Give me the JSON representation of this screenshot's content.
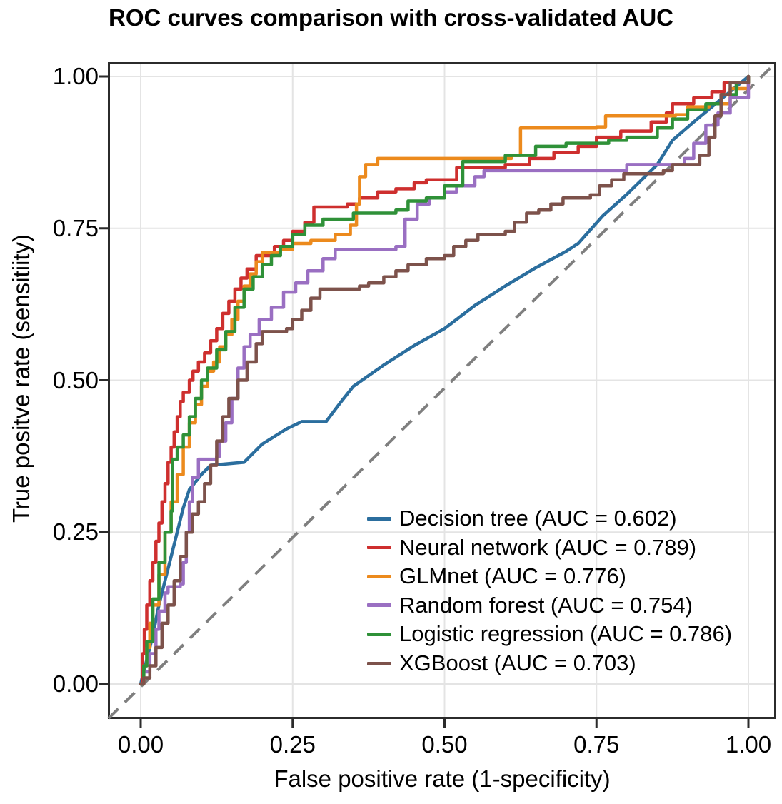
{
  "title": "ROC curves comparison with cross-validated AUC",
  "axes": {
    "x_label": "False positive rate (1-specificity)",
    "y_label": "True positve rate (sensitiity)",
    "x_ticks": [
      "0.00",
      "0.25",
      "0.50",
      "0.75",
      "1.00"
    ],
    "y_ticks": [
      "0.00",
      "0.25",
      "0.50",
      "0.75",
      "1.00"
    ],
    "x_tick_values": [
      0,
      0.25,
      0.5,
      0.75,
      1
    ],
    "y_tick_values": [
      0,
      0.25,
      0.5,
      0.75,
      1
    ]
  },
  "style_colors": {
    "grid": "#e4e4e4",
    "panel_border": "#2b2b2b",
    "diagonal": "#7f7f7f",
    "text": "#000000"
  },
  "chart_data": {
    "type": "line",
    "title": "ROC curves comparison with cross-validated AUC",
    "xlabel": "False positive rate (1-specificity)",
    "ylabel": "True positve rate (sensitiity)",
    "xlim": [
      0,
      1
    ],
    "ylim": [
      0,
      1
    ],
    "grid": true,
    "legend_position": "inside lower-right",
    "reference_line": {
      "type": "diagonal chance line",
      "style": "dashed",
      "color": "#7f7f7f",
      "from": [
        0,
        0
      ],
      "to": [
        1,
        1
      ]
    },
    "series": [
      {
        "name": "Decision tree",
        "auc": 0.602,
        "label": "Decision tree (AUC = 0.602)",
        "color": "#2b6e9e",
        "interp": "linear",
        "points": [
          [
            0,
            0
          ],
          [
            0.01,
            0.04
          ],
          [
            0.02,
            0.08
          ],
          [
            0.03,
            0.13
          ],
          [
            0.04,
            0.17
          ],
          [
            0.05,
            0.21
          ],
          [
            0.06,
            0.25
          ],
          [
            0.07,
            0.29
          ],
          [
            0.08,
            0.32
          ],
          [
            0.1,
            0.345
          ],
          [
            0.115,
            0.36
          ],
          [
            0.17,
            0.365
          ],
          [
            0.2,
            0.395
          ],
          [
            0.24,
            0.42
          ],
          [
            0.265,
            0.432
          ],
          [
            0.305,
            0.432
          ],
          [
            0.33,
            0.465
          ],
          [
            0.35,
            0.49
          ],
          [
            0.4,
            0.525
          ],
          [
            0.45,
            0.557
          ],
          [
            0.5,
            0.585
          ],
          [
            0.55,
            0.623
          ],
          [
            0.6,
            0.655
          ],
          [
            0.65,
            0.685
          ],
          [
            0.7,
            0.712
          ],
          [
            0.72,
            0.725
          ],
          [
            0.76,
            0.77
          ],
          [
            0.8,
            0.806
          ],
          [
            0.85,
            0.855
          ],
          [
            0.875,
            0.895
          ],
          [
            0.91,
            0.925
          ],
          [
            1,
            1
          ]
        ]
      },
      {
        "name": "Neural network",
        "auc": 0.789,
        "label": "Neural network (AUC = 0.789)",
        "color": "#ce2f2e",
        "interp": "step",
        "points": [
          [
            0,
            0
          ],
          [
            0.003,
            0.05
          ],
          [
            0.006,
            0.09
          ],
          [
            0.01,
            0.13
          ],
          [
            0.015,
            0.17
          ],
          [
            0.02,
            0.2
          ],
          [
            0.025,
            0.235
          ],
          [
            0.03,
            0.265
          ],
          [
            0.035,
            0.3
          ],
          [
            0.04,
            0.33
          ],
          [
            0.045,
            0.365
          ],
          [
            0.05,
            0.39
          ],
          [
            0.055,
            0.415
          ],
          [
            0.06,
            0.44
          ],
          [
            0.065,
            0.465
          ],
          [
            0.07,
            0.48
          ],
          [
            0.08,
            0.5
          ],
          [
            0.086,
            0.515
          ],
          [
            0.095,
            0.53
          ],
          [
            0.105,
            0.545
          ],
          [
            0.115,
            0.565
          ],
          [
            0.125,
            0.585
          ],
          [
            0.135,
            0.61
          ],
          [
            0.145,
            0.63
          ],
          [
            0.155,
            0.65
          ],
          [
            0.165,
            0.668
          ],
          [
            0.175,
            0.683
          ],
          [
            0.19,
            0.705
          ],
          [
            0.22,
            0.72
          ],
          [
            0.235,
            0.73
          ],
          [
            0.25,
            0.745
          ],
          [
            0.27,
            0.76
          ],
          [
            0.285,
            0.785
          ],
          [
            0.34,
            0.79
          ],
          [
            0.36,
            0.8
          ],
          [
            0.39,
            0.81
          ],
          [
            0.42,
            0.815
          ],
          [
            0.45,
            0.825
          ],
          [
            0.47,
            0.83
          ],
          [
            0.52,
            0.85
          ],
          [
            0.6,
            0.855
          ],
          [
            0.64,
            0.865
          ],
          [
            0.68,
            0.875
          ],
          [
            0.72,
            0.885
          ],
          [
            0.75,
            0.9
          ],
          [
            0.79,
            0.91
          ],
          [
            0.84,
            0.925
          ],
          [
            0.865,
            0.94
          ],
          [
            0.875,
            0.955
          ],
          [
            0.91,
            0.965
          ],
          [
            0.94,
            0.975
          ],
          [
            0.96,
            0.99
          ],
          [
            1,
            1
          ]
        ]
      },
      {
        "name": "GLMnet",
        "auc": 0.776,
        "label": "GLMnet (AUC = 0.776)",
        "color": "#ec8a1d",
        "interp": "step",
        "points": [
          [
            0,
            0
          ],
          [
            0.005,
            0.03
          ],
          [
            0.01,
            0.06
          ],
          [
            0.015,
            0.1
          ],
          [
            0.02,
            0.13
          ],
          [
            0.03,
            0.18
          ],
          [
            0.04,
            0.25
          ],
          [
            0.05,
            0.3
          ],
          [
            0.06,
            0.345
          ],
          [
            0.07,
            0.39
          ],
          [
            0.08,
            0.43
          ],
          [
            0.09,
            0.46
          ],
          [
            0.1,
            0.49
          ],
          [
            0.11,
            0.515
          ],
          [
            0.12,
            0.53
          ],
          [
            0.13,
            0.555
          ],
          [
            0.14,
            0.575
          ],
          [
            0.15,
            0.6
          ],
          [
            0.16,
            0.63
          ],
          [
            0.17,
            0.655
          ],
          [
            0.18,
            0.675
          ],
          [
            0.19,
            0.695
          ],
          [
            0.2,
            0.71
          ],
          [
            0.23,
            0.715
          ],
          [
            0.25,
            0.725
          ],
          [
            0.28,
            0.73
          ],
          [
            0.32,
            0.74
          ],
          [
            0.345,
            0.755
          ],
          [
            0.355,
            0.79
          ],
          [
            0.36,
            0.835
          ],
          [
            0.37,
            0.855
          ],
          [
            0.39,
            0.865
          ],
          [
            0.61,
            0.87
          ],
          [
            0.625,
            0.915
          ],
          [
            0.75,
            0.917
          ],
          [
            0.765,
            0.935
          ],
          [
            0.88,
            0.937
          ],
          [
            0.9,
            0.95
          ],
          [
            0.935,
            0.955
          ],
          [
            0.97,
            0.98
          ],
          [
            1,
            1
          ]
        ]
      },
      {
        "name": "Random forest",
        "auc": 0.754,
        "label": "Random forest (AUC = 0.754)",
        "color": "#9a6fc2",
        "interp": "step",
        "points": [
          [
            0,
            0
          ],
          [
            0.005,
            0.02
          ],
          [
            0.015,
            0.05
          ],
          [
            0.025,
            0.09
          ],
          [
            0.03,
            0.12
          ],
          [
            0.04,
            0.15
          ],
          [
            0.045,
            0.16
          ],
          [
            0.065,
            0.165
          ],
          [
            0.07,
            0.2
          ],
          [
            0.075,
            0.25
          ],
          [
            0.08,
            0.3
          ],
          [
            0.085,
            0.34
          ],
          [
            0.095,
            0.37
          ],
          [
            0.125,
            0.375
          ],
          [
            0.13,
            0.4
          ],
          [
            0.14,
            0.43
          ],
          [
            0.15,
            0.47
          ],
          [
            0.16,
            0.52
          ],
          [
            0.17,
            0.555
          ],
          [
            0.18,
            0.575
          ],
          [
            0.195,
            0.6
          ],
          [
            0.215,
            0.62
          ],
          [
            0.235,
            0.645
          ],
          [
            0.255,
            0.66
          ],
          [
            0.275,
            0.68
          ],
          [
            0.3,
            0.7
          ],
          [
            0.32,
            0.715
          ],
          [
            0.42,
            0.72
          ],
          [
            0.435,
            0.765
          ],
          [
            0.455,
            0.79
          ],
          [
            0.475,
            0.8
          ],
          [
            0.5,
            0.81
          ],
          [
            0.52,
            0.82
          ],
          [
            0.55,
            0.835
          ],
          [
            0.565,
            0.845
          ],
          [
            0.78,
            0.845
          ],
          [
            0.8,
            0.855
          ],
          [
            0.88,
            0.855
          ],
          [
            0.895,
            0.865
          ],
          [
            0.91,
            0.89
          ],
          [
            0.93,
            0.92
          ],
          [
            0.95,
            0.94
          ],
          [
            0.97,
            0.965
          ],
          [
            1,
            1
          ]
        ]
      },
      {
        "name": "Logistic regression",
        "auc": 0.786,
        "label": "Logistic regression (AUC = 0.786)",
        "color": "#2f9138",
        "interp": "step",
        "points": [
          [
            0,
            0
          ],
          [
            0.005,
            0.03
          ],
          [
            0.01,
            0.07
          ],
          [
            0.02,
            0.14
          ],
          [
            0.03,
            0.2
          ],
          [
            0.04,
            0.25
          ],
          [
            0.05,
            0.285
          ],
          [
            0.052,
            0.37
          ],
          [
            0.06,
            0.39
          ],
          [
            0.07,
            0.41
          ],
          [
            0.08,
            0.44
          ],
          [
            0.09,
            0.47
          ],
          [
            0.1,
            0.5
          ],
          [
            0.11,
            0.52
          ],
          [
            0.125,
            0.55
          ],
          [
            0.14,
            0.58
          ],
          [
            0.155,
            0.62
          ],
          [
            0.17,
            0.65
          ],
          [
            0.185,
            0.67
          ],
          [
            0.2,
            0.69
          ],
          [
            0.215,
            0.705
          ],
          [
            0.23,
            0.72
          ],
          [
            0.25,
            0.74
          ],
          [
            0.27,
            0.755
          ],
          [
            0.3,
            0.765
          ],
          [
            0.35,
            0.775
          ],
          [
            0.42,
            0.78
          ],
          [
            0.44,
            0.795
          ],
          [
            0.47,
            0.8
          ],
          [
            0.5,
            0.82
          ],
          [
            0.53,
            0.86
          ],
          [
            0.6,
            0.87
          ],
          [
            0.65,
            0.885
          ],
          [
            0.7,
            0.89
          ],
          [
            0.77,
            0.895
          ],
          [
            0.8,
            0.9
          ],
          [
            0.85,
            0.915
          ],
          [
            0.875,
            0.93
          ],
          [
            0.9,
            0.945
          ],
          [
            0.93,
            0.955
          ],
          [
            0.955,
            0.97
          ],
          [
            0.98,
            0.99
          ],
          [
            1,
            1
          ]
        ]
      },
      {
        "name": "XGBoost",
        "auc": 0.703,
        "label": "XGBoost (AUC = 0.703)",
        "color": "#7d524b",
        "interp": "step",
        "points": [
          [
            0,
            0
          ],
          [
            0.005,
            0.01
          ],
          [
            0.015,
            0.03
          ],
          [
            0.025,
            0.06
          ],
          [
            0.035,
            0.1
          ],
          [
            0.045,
            0.13
          ],
          [
            0.055,
            0.17
          ],
          [
            0.065,
            0.21
          ],
          [
            0.075,
            0.25
          ],
          [
            0.085,
            0.28
          ],
          [
            0.095,
            0.3
          ],
          [
            0.105,
            0.33
          ],
          [
            0.115,
            0.36
          ],
          [
            0.125,
            0.4
          ],
          [
            0.135,
            0.44
          ],
          [
            0.145,
            0.47
          ],
          [
            0.16,
            0.5
          ],
          [
            0.175,
            0.53
          ],
          [
            0.19,
            0.56
          ],
          [
            0.2,
            0.58
          ],
          [
            0.24,
            0.585
          ],
          [
            0.25,
            0.6
          ],
          [
            0.265,
            0.615
          ],
          [
            0.28,
            0.635
          ],
          [
            0.295,
            0.65
          ],
          [
            0.36,
            0.655
          ],
          [
            0.375,
            0.66
          ],
          [
            0.4,
            0.67
          ],
          [
            0.42,
            0.68
          ],
          [
            0.44,
            0.69
          ],
          [
            0.47,
            0.7
          ],
          [
            0.5,
            0.705
          ],
          [
            0.515,
            0.72
          ],
          [
            0.535,
            0.73
          ],
          [
            0.555,
            0.74
          ],
          [
            0.6,
            0.745
          ],
          [
            0.615,
            0.76
          ],
          [
            0.635,
            0.775
          ],
          [
            0.655,
            0.78
          ],
          [
            0.675,
            0.79
          ],
          [
            0.695,
            0.8
          ],
          [
            0.74,
            0.805
          ],
          [
            0.755,
            0.82
          ],
          [
            0.775,
            0.83
          ],
          [
            0.795,
            0.84
          ],
          [
            0.86,
            0.845
          ],
          [
            0.875,
            0.855
          ],
          [
            0.92,
            0.87
          ],
          [
            0.935,
            0.9
          ],
          [
            0.945,
            0.935
          ],
          [
            0.955,
            0.97
          ],
          [
            0.97,
            0.99
          ],
          [
            1,
            1
          ]
        ]
      }
    ]
  }
}
